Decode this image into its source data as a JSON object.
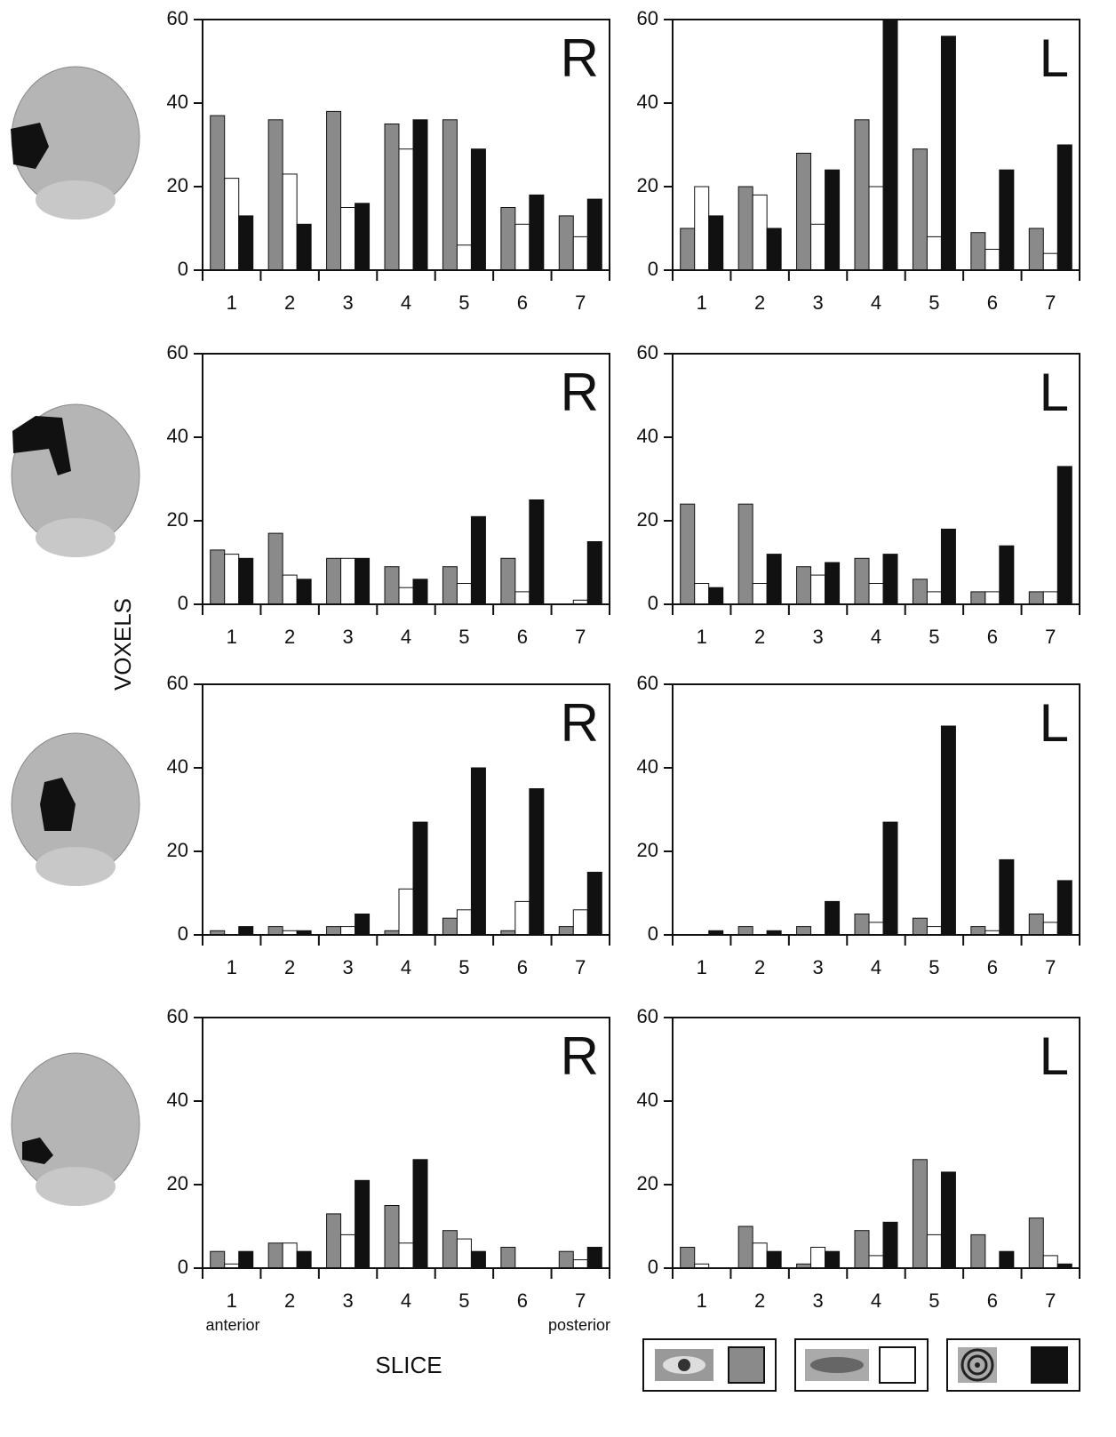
{
  "figure": {
    "y_label": "VOXELS",
    "x_label": "SLICE",
    "anterior": "anterior",
    "posterior": "posterior"
  },
  "chart_data": [
    {
      "type": "bar",
      "label": "R",
      "categories": [
        "1",
        "2",
        "3",
        "4",
        "5",
        "6",
        "7"
      ],
      "ylim": [
        0,
        60
      ],
      "yticks": [
        0,
        20,
        40,
        60
      ],
      "series": [
        {
          "color": "#8a8a8a",
          "values": [
            37,
            36,
            38,
            35,
            36,
            15,
            13
          ]
        },
        {
          "color": "#ffffff",
          "values": [
            22,
            23,
            15,
            29,
            6,
            11,
            8
          ]
        },
        {
          "color": "#111111",
          "values": [
            13,
            11,
            16,
            36,
            29,
            18,
            17
          ]
        }
      ]
    },
    {
      "type": "bar",
      "label": "L",
      "categories": [
        "1",
        "2",
        "3",
        "4",
        "5",
        "6",
        "7"
      ],
      "ylim": [
        0,
        60
      ],
      "yticks": [
        0,
        20,
        40,
        60
      ],
      "series": [
        {
          "color": "#8a8a8a",
          "values": [
            10,
            20,
            28,
            36,
            29,
            9,
            10
          ]
        },
        {
          "color": "#ffffff",
          "values": [
            20,
            18,
            11,
            20,
            8,
            5,
            4
          ]
        },
        {
          "color": "#111111",
          "values": [
            13,
            10,
            24,
            60,
            56,
            24,
            30
          ]
        }
      ]
    },
    {
      "type": "bar",
      "label": "R",
      "categories": [
        "1",
        "2",
        "3",
        "4",
        "5",
        "6",
        "7"
      ],
      "ylim": [
        0,
        60
      ],
      "yticks": [
        0,
        20,
        40,
        60
      ],
      "series": [
        {
          "color": "#8a8a8a",
          "values": [
            13,
            17,
            11,
            9,
            9,
            11,
            0
          ]
        },
        {
          "color": "#ffffff",
          "values": [
            12,
            7,
            11,
            4,
            5,
            3,
            1
          ]
        },
        {
          "color": "#111111",
          "values": [
            11,
            6,
            11,
            6,
            21,
            25,
            15
          ]
        }
      ]
    },
    {
      "type": "bar",
      "label": "L",
      "categories": [
        "1",
        "2",
        "3",
        "4",
        "5",
        "6",
        "7"
      ],
      "ylim": [
        0,
        60
      ],
      "yticks": [
        0,
        20,
        40,
        60
      ],
      "series": [
        {
          "color": "#8a8a8a",
          "values": [
            24,
            24,
            9,
            11,
            6,
            3,
            3
          ]
        },
        {
          "color": "#ffffff",
          "values": [
            5,
            5,
            7,
            5,
            3,
            3,
            3
          ]
        },
        {
          "color": "#111111",
          "values": [
            4,
            12,
            10,
            12,
            18,
            14,
            33
          ]
        }
      ]
    },
    {
      "type": "bar",
      "label": "R",
      "categories": [
        "1",
        "2",
        "3",
        "4",
        "5",
        "6",
        "7"
      ],
      "ylim": [
        0,
        60
      ],
      "yticks": [
        0,
        20,
        40,
        60
      ],
      "series": [
        {
          "color": "#8a8a8a",
          "values": [
            1,
            2,
            2,
            1,
            4,
            1,
            2
          ]
        },
        {
          "color": "#ffffff",
          "values": [
            0,
            1,
            2,
            11,
            6,
            8,
            6
          ]
        },
        {
          "color": "#111111",
          "values": [
            2,
            1,
            5,
            27,
            40,
            35,
            15
          ]
        }
      ]
    },
    {
      "type": "bar",
      "label": "L",
      "categories": [
        "1",
        "2",
        "3",
        "4",
        "5",
        "6",
        "7"
      ],
      "ylim": [
        0,
        60
      ],
      "yticks": [
        0,
        20,
        40,
        60
      ],
      "series": [
        {
          "color": "#8a8a8a",
          "values": [
            0,
            2,
            2,
            5,
            4,
            2,
            5
          ]
        },
        {
          "color": "#ffffff",
          "values": [
            0,
            0,
            0,
            3,
            2,
            1,
            3
          ]
        },
        {
          "color": "#111111",
          "values": [
            1,
            1,
            8,
            27,
            50,
            18,
            13
          ]
        }
      ]
    },
    {
      "type": "bar",
      "label": "R",
      "categories": [
        "1",
        "2",
        "3",
        "4",
        "5",
        "6",
        "7"
      ],
      "ylim": [
        0,
        60
      ],
      "yticks": [
        0,
        20,
        40,
        60
      ],
      "series": [
        {
          "color": "#8a8a8a",
          "values": [
            4,
            6,
            13,
            15,
            9,
            5,
            4
          ]
        },
        {
          "color": "#ffffff",
          "values": [
            1,
            6,
            8,
            6,
            7,
            0,
            2
          ]
        },
        {
          "color": "#111111",
          "values": [
            4,
            4,
            21,
            26,
            4,
            0,
            5
          ]
        }
      ]
    },
    {
      "type": "bar",
      "label": "L",
      "categories": [
        "1",
        "2",
        "3",
        "4",
        "5",
        "6",
        "7"
      ],
      "ylim": [
        0,
        60
      ],
      "yticks": [
        0,
        20,
        40,
        60
      ],
      "series": [
        {
          "color": "#8a8a8a",
          "values": [
            5,
            10,
            1,
            9,
            26,
            8,
            12
          ]
        },
        {
          "color": "#ffffff",
          "values": [
            1,
            6,
            5,
            3,
            8,
            0,
            3
          ]
        },
        {
          "color": "#111111",
          "values": [
            0,
            4,
            4,
            11,
            23,
            4,
            1
          ]
        }
      ]
    }
  ]
}
